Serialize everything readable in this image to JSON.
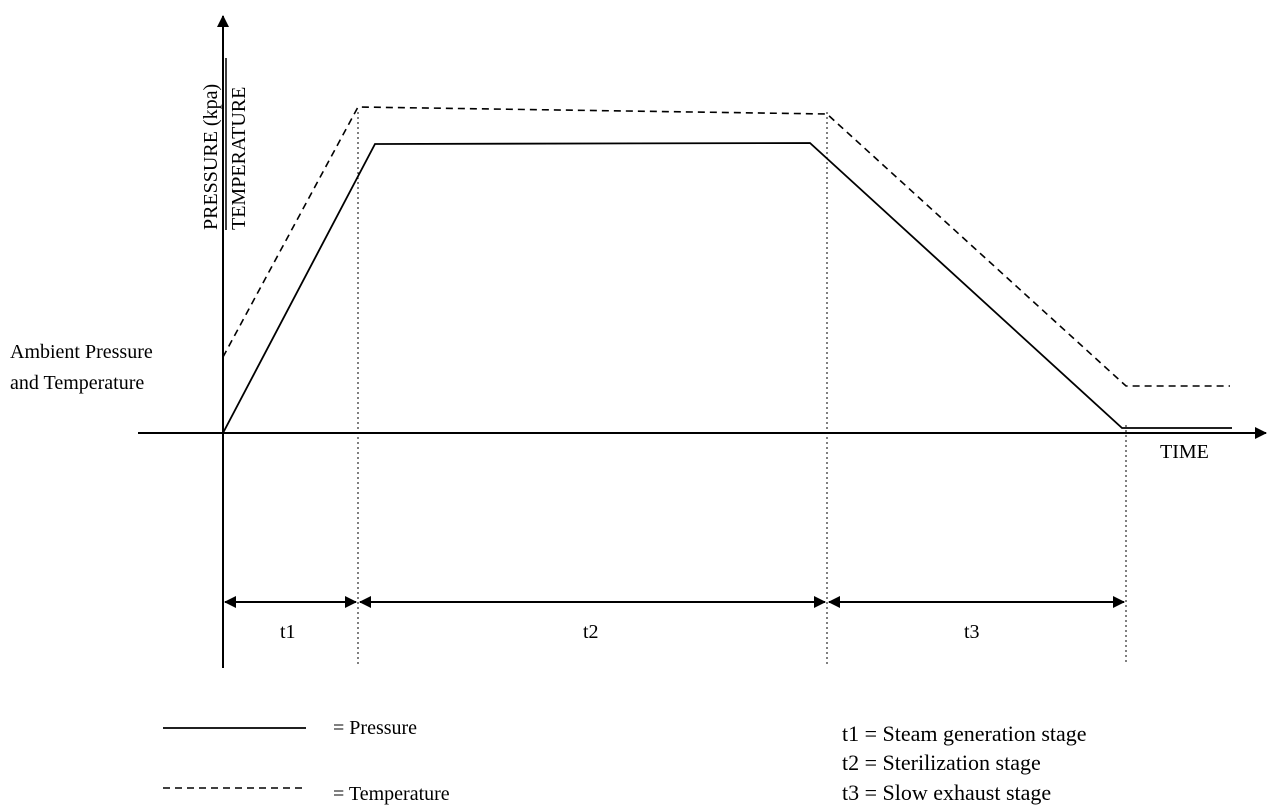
{
  "axes": {
    "y_label_top": "PRESSURE (kpa)",
    "y_label_bottom": "TEMPERATURE",
    "x_label": "TIME",
    "ambient_line1": "Ambient Pressure",
    "ambient_line2": "and Temperature"
  },
  "stages": [
    {
      "label": "t1"
    },
    {
      "label": "t2"
    },
    {
      "label": "t3"
    }
  ],
  "legend": {
    "pressure": "=  Pressure",
    "temperature": "=  Temperature"
  },
  "stage_key": [
    "t1 = Steam generation stage",
    "t2 = Sterilization stage",
    "t3 = Slow exhaust stage"
  ]
}
